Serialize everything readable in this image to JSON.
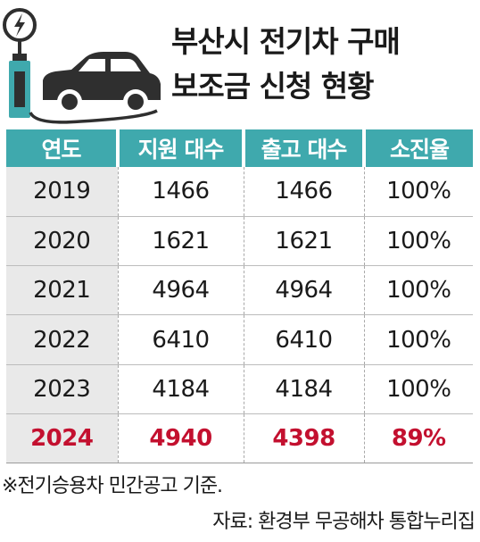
{
  "title_lines": [
    "부산시 전기차 구매",
    "보조금 신청 현황"
  ],
  "chart_data": {
    "type": "table",
    "title": "부산시 전기차 구매 보조금 신청 현황",
    "columns": [
      "연도",
      "지원 대수",
      "출고 대수",
      "소진율"
    ],
    "rows": [
      {
        "year": "2019",
        "support": "1466",
        "released": "1466",
        "rate": "100%"
      },
      {
        "year": "2020",
        "support": "1621",
        "released": "1621",
        "rate": "100%"
      },
      {
        "year": "2021",
        "support": "4964",
        "released": "4964",
        "rate": "100%"
      },
      {
        "year": "2022",
        "support": "6410",
        "released": "6410",
        "rate": "100%"
      },
      {
        "year": "2023",
        "support": "4184",
        "released": "4184",
        "rate": "100%"
      },
      {
        "year": "2024",
        "support": "4940",
        "released": "4398",
        "rate": "89%"
      }
    ],
    "highlight_row_index": 5,
    "highlight_color": "#c3102f",
    "header_color": "#3fa9ad"
  },
  "note": "※전기승용차 민간공고 기준.",
  "source": "자료: 환경부 무공해차 통합누리집",
  "icons": [
    "ev-charger-icon",
    "car-icon"
  ]
}
